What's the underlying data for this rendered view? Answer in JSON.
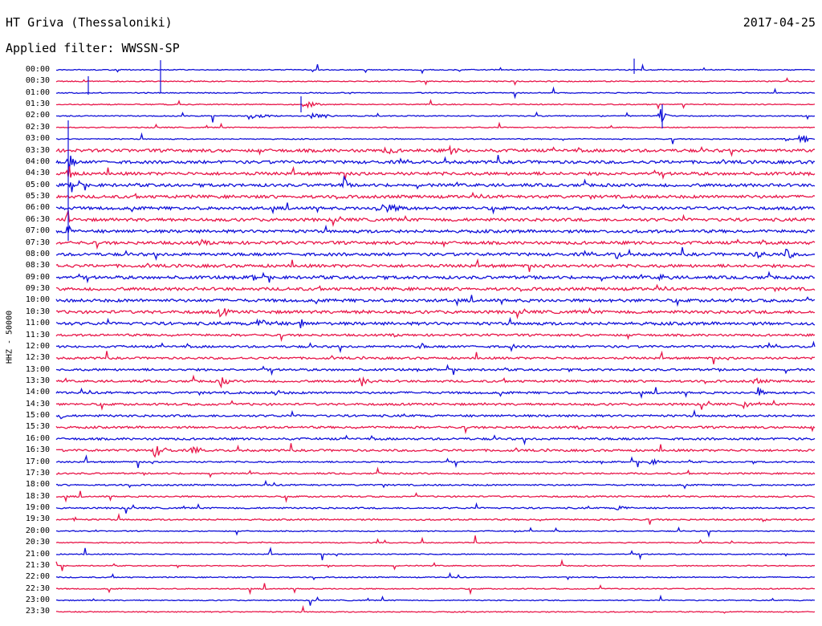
{
  "header": {
    "station": "HT Griva (Thessaloniki)",
    "date": "2017-04-25",
    "filter": "Applied filter: WWSSN-SP"
  },
  "channel": "HHZ - 50000",
  "colors": {
    "even_row": "#1010d8",
    "odd_row": "#e8174a"
  },
  "time_labels": [
    "00:00",
    "00:30",
    "01:00",
    "01:30",
    "02:00",
    "02:30",
    "03:00",
    "03:30",
    "04:00",
    "04:30",
    "05:00",
    "05:30",
    "06:00",
    "06:30",
    "07:00",
    "07:30",
    "08:00",
    "08:30",
    "09:00",
    "09:30",
    "10:00",
    "10:30",
    "11:00",
    "11:30",
    "12:00",
    "12:30",
    "13:00",
    "13:30",
    "14:00",
    "14:30",
    "15:00",
    "15:30",
    "16:00",
    "16:30",
    "17:00",
    "17:30",
    "18:00",
    "18:30",
    "19:00",
    "19:30",
    "20:00",
    "20:30",
    "21:00",
    "21:30",
    "22:00",
    "22:30",
    "23:00",
    "23:30"
  ]
}
